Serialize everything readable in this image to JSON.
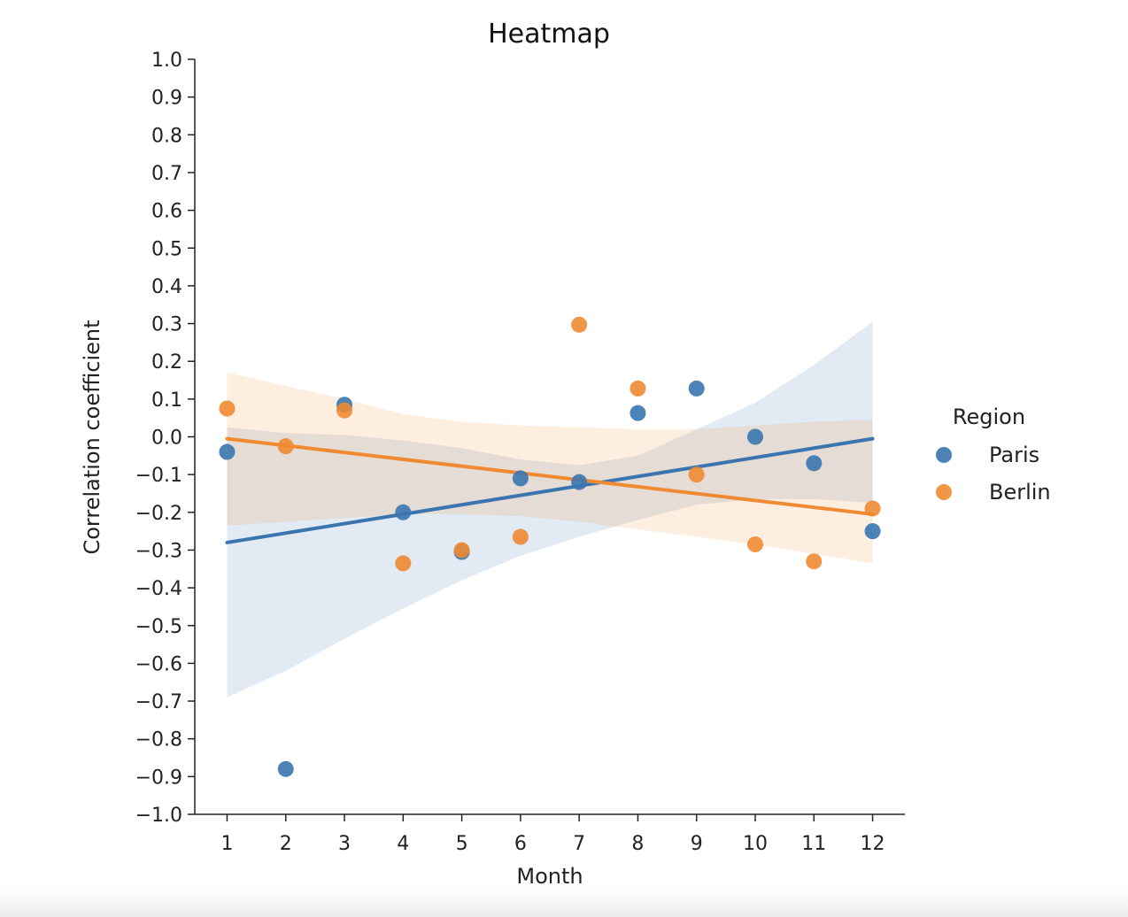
{
  "chart_data": {
    "type": "scatter",
    "title": "Heatmap",
    "xlabel": "Month",
    "ylabel": "Correlation coefficient",
    "xlim": [
      0.45,
      12.55
    ],
    "ylim": [
      -1.0,
      1.0
    ],
    "x_ticks": [
      1,
      2,
      3,
      4,
      5,
      6,
      7,
      8,
      9,
      10,
      11,
      12
    ],
    "x_tick_labels": [
      "1",
      "2",
      "3",
      "4",
      "5",
      "6",
      "7",
      "8",
      "9",
      "10",
      "11",
      "12"
    ],
    "y_ticks": [
      1.0,
      0.9,
      0.8,
      0.7,
      0.6,
      0.5,
      0.4,
      0.3,
      0.2,
      0.1,
      0.0,
      -0.1,
      -0.2,
      -0.3,
      -0.4,
      -0.5,
      -0.6,
      -0.7,
      -0.8,
      -0.9,
      -1.0
    ],
    "y_tick_labels": [
      "1.0",
      "0.9",
      "0.8",
      "0.7",
      "0.6",
      "0.5",
      "0.4",
      "0.3",
      "0.2",
      "0.1",
      "0.0",
      "−0.1",
      "−0.2",
      "−0.3",
      "−0.4",
      "−0.5",
      "−0.6",
      "−0.7",
      "−0.8",
      "−0.9",
      "−1.0"
    ],
    "grid": false,
    "legend": {
      "title": "Region",
      "placement": "right"
    },
    "series": [
      {
        "name": "Paris",
        "color": "#3a75af",
        "x": [
          1,
          2,
          3,
          4,
          5,
          6,
          7,
          8,
          9,
          10,
          11,
          12
        ],
        "y": [
          -0.04,
          -0.88,
          0.085,
          -0.2,
          -0.305,
          -0.11,
          -0.12,
          0.063,
          0.128,
          0.0,
          -0.07,
          -0.25
        ],
        "regression": {
          "x": [
            1,
            12
          ],
          "y": [
            -0.28,
            -0.005
          ]
        },
        "ci_band": {
          "x": [
            1,
            2,
            3,
            4,
            5,
            6,
            7,
            8,
            9,
            10,
            11,
            12
          ],
          "upper": [
            0.025,
            0.01,
            0.005,
            -0.01,
            -0.03,
            -0.06,
            -0.075,
            -0.05,
            0.02,
            0.09,
            0.19,
            0.305
          ],
          "lower": [
            -0.69,
            -0.62,
            -0.535,
            -0.455,
            -0.38,
            -0.315,
            -0.265,
            -0.22,
            -0.18,
            -0.165,
            -0.165,
            -0.175
          ]
        }
      },
      {
        "name": "Berlin",
        "color": "#f08a32",
        "x": [
          1,
          2,
          3,
          4,
          5,
          6,
          7,
          8,
          9,
          10,
          11,
          12
        ],
        "y": [
          0.075,
          -0.025,
          0.07,
          -0.335,
          -0.3,
          -0.265,
          0.297,
          0.128,
          -0.1,
          -0.285,
          -0.33,
          -0.19
        ],
        "regression": {
          "x": [
            1,
            12
          ],
          "y": [
            -0.005,
            -0.205
          ]
        },
        "ci_band": {
          "x": [
            1,
            2,
            3,
            4,
            5,
            6,
            7,
            8,
            9,
            10,
            11,
            12
          ],
          "upper": [
            0.17,
            0.135,
            0.1,
            0.06,
            0.04,
            0.03,
            0.025,
            0.02,
            0.02,
            0.03,
            0.04,
            0.045
          ],
          "lower": [
            -0.235,
            -0.225,
            -0.215,
            -0.205,
            -0.205,
            -0.21,
            -0.225,
            -0.245,
            -0.265,
            -0.285,
            -0.31,
            -0.335
          ]
        }
      }
    ]
  }
}
